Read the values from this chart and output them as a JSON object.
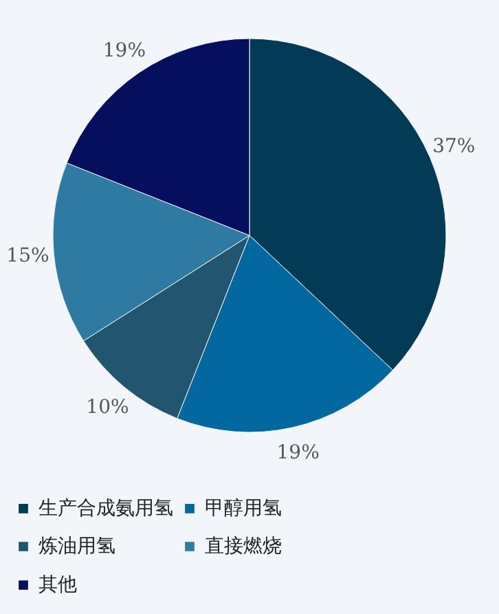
{
  "chart_data": {
    "type": "pie",
    "categories": [
      "生产合成氨用氢",
      "甲醇用氢",
      "炼油用氢",
      "直接燃烧",
      "其他"
    ],
    "values": [
      37,
      19,
      10,
      15,
      19
    ],
    "colors": [
      "#033a55",
      "#0468a0",
      "#22556f",
      "#2f7aa3",
      "#050f5e"
    ],
    "value_labels": [
      "37%",
      "19%",
      "10%",
      "15%",
      "19%"
    ],
    "legend": "bottom"
  }
}
